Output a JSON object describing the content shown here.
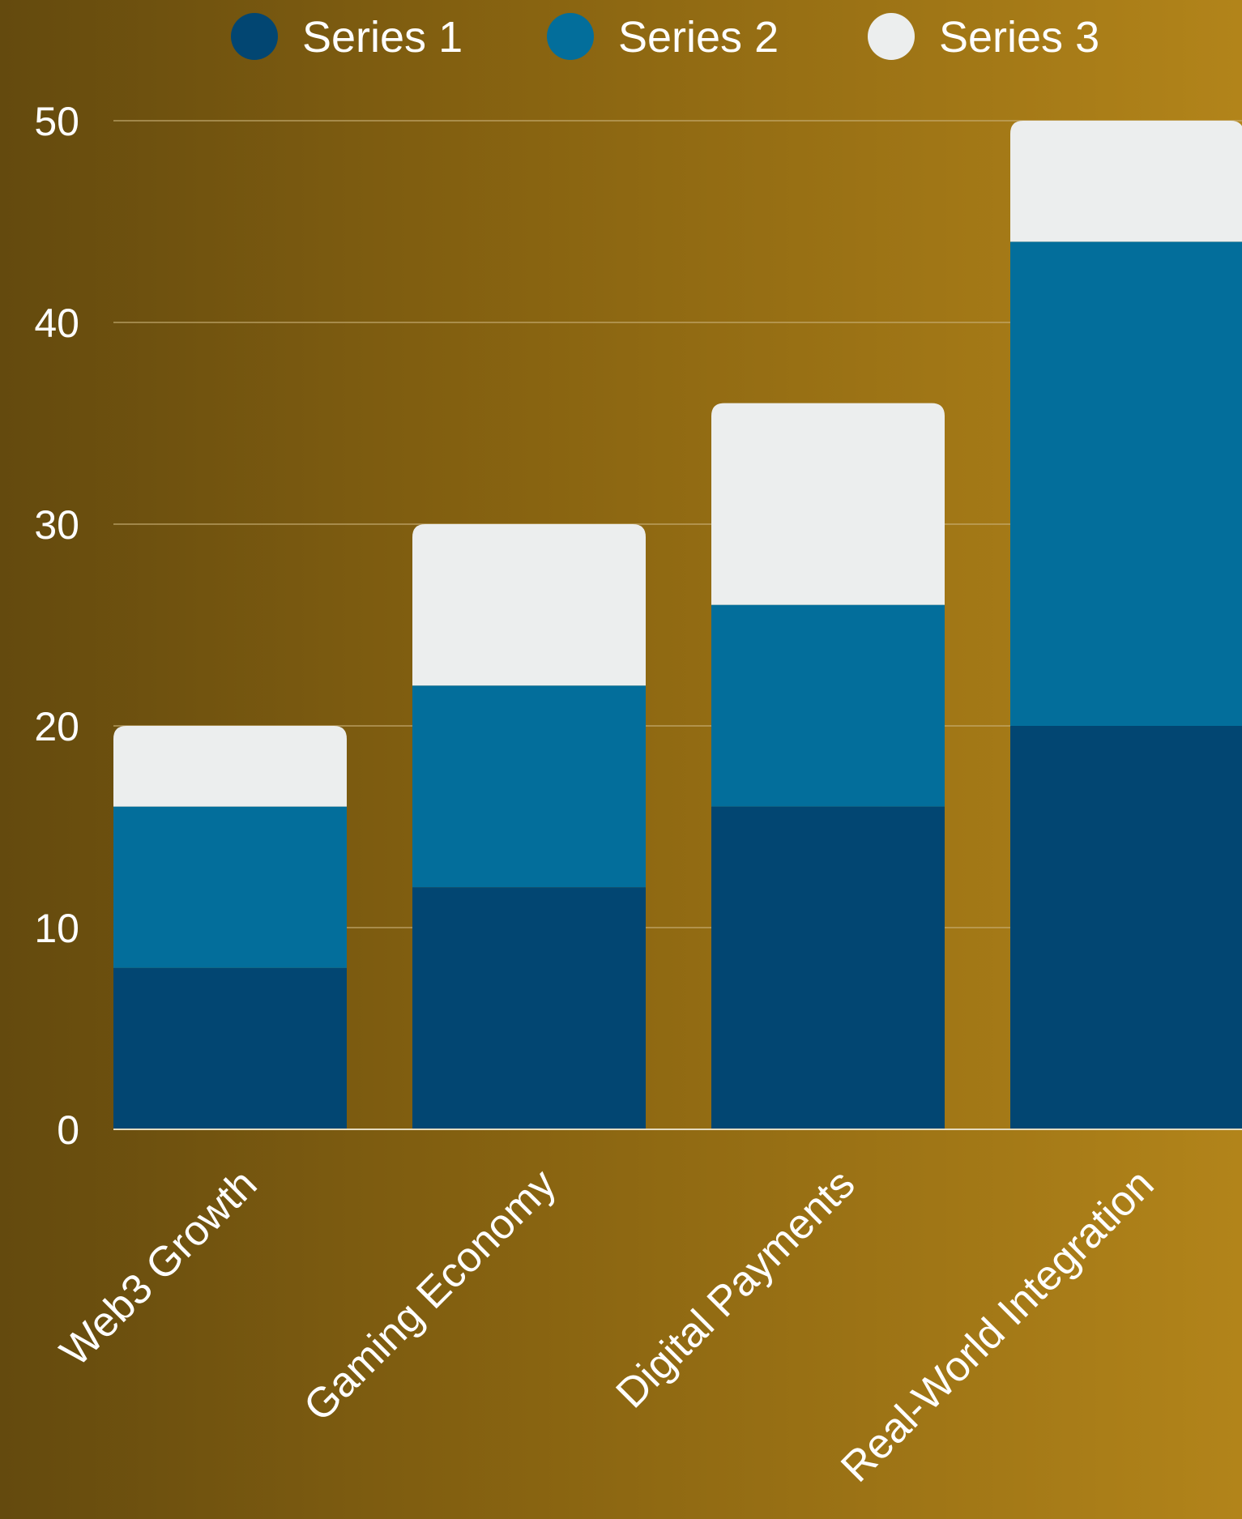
{
  "chart_data": {
    "type": "bar",
    "stacked": true,
    "categories": [
      "Web3 Growth",
      "Gaming Economy",
      "Digital Payments",
      "Real-World Integration"
    ],
    "series": [
      {
        "name": "Series 1",
        "values": [
          8,
          12,
          16,
          20
        ],
        "color": "#024672"
      },
      {
        "name": "Series 2",
        "values": [
          8,
          10,
          10,
          24
        ],
        "color": "#036e9b"
      },
      {
        "name": "Series 3",
        "values": [
          4,
          8,
          10,
          6
        ],
        "color": "#eceeee"
      }
    ],
    "yticks": [
      "0",
      "10",
      "20",
      "30",
      "40",
      "50"
    ],
    "ylim": [
      0,
      50
    ],
    "grid": true,
    "legend": "top"
  }
}
